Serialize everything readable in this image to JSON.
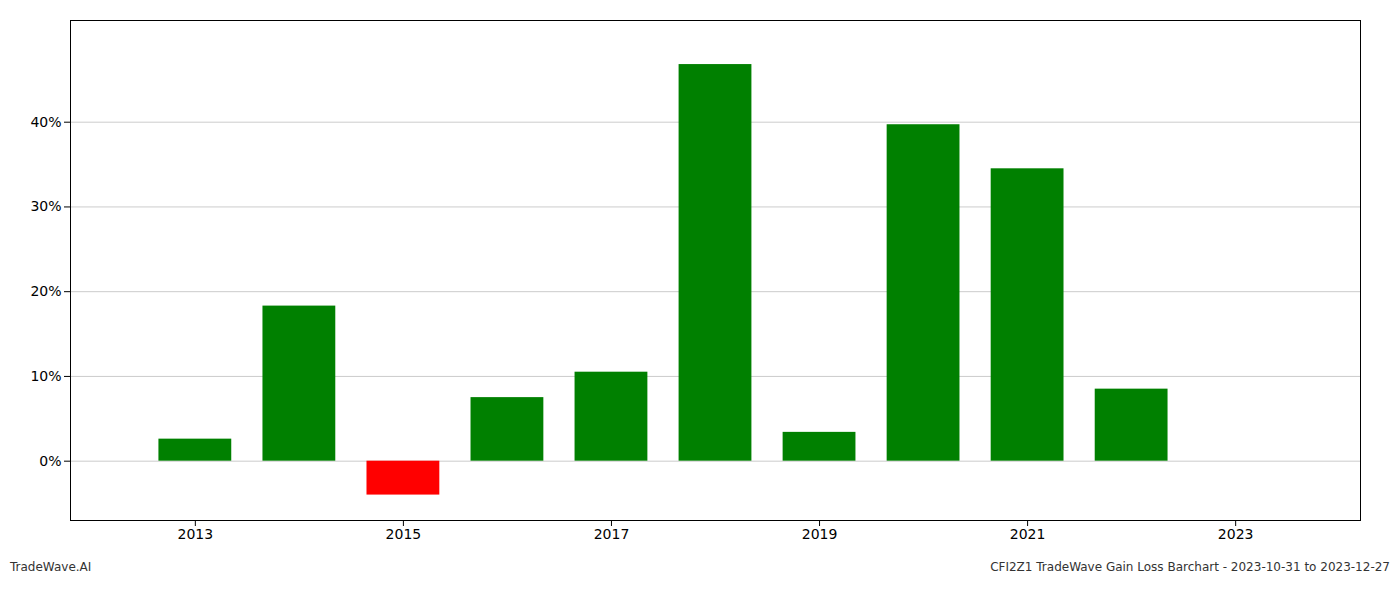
{
  "chart_data": {
    "type": "bar",
    "x": [
      2013,
      2014,
      2015,
      2016,
      2017,
      2018,
      2019,
      2020,
      2021,
      2022
    ],
    "values": [
      0.026,
      0.183,
      -0.04,
      0.075,
      0.105,
      0.468,
      0.034,
      0.397,
      0.345,
      0.085
    ],
    "colors": [
      "#008000",
      "#008000",
      "#ff0000",
      "#008000",
      "#008000",
      "#008000",
      "#008000",
      "#008000",
      "#008000",
      "#008000"
    ],
    "xlim": [
      2011.8,
      2024.2
    ],
    "xticks": [
      2013,
      2015,
      2017,
      2019,
      2021,
      2023
    ],
    "ylim": [
      -0.07,
      0.52
    ],
    "yticks": [
      {
        "value": 0.0,
        "label": "0%"
      },
      {
        "value": 0.1,
        "label": "10%"
      },
      {
        "value": 0.2,
        "label": "20%"
      },
      {
        "value": 0.3,
        "label": "30%"
      },
      {
        "value": 0.4,
        "label": "40%"
      }
    ],
    "grid": true,
    "annotations": [
      "TradeWave.AI",
      "CFI2Z1 TradeWave Gain Loss Barchart - 2023-10-31 to 2023-12-27"
    ]
  }
}
